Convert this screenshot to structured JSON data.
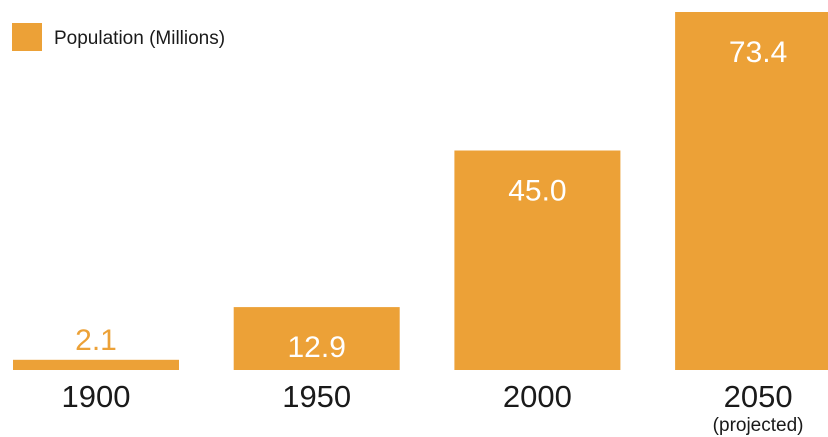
{
  "chart_data": {
    "type": "bar",
    "categories": [
      "1900",
      "1950",
      "2000",
      "2050"
    ],
    "category_sublabels": [
      "",
      "",
      "",
      "(projected)"
    ],
    "series": [
      {
        "name": "Population (Millions)",
        "values": [
          2.1,
          12.9,
          45.0,
          73.4
        ],
        "value_labels": [
          "2.1",
          "12.9",
          "45.0",
          "73.4"
        ],
        "color": "#eca137"
      }
    ],
    "title": "",
    "xlabel": "",
    "ylabel": "",
    "ylim": [
      0,
      73.4
    ],
    "grid": false,
    "legend_position": "top-left"
  }
}
